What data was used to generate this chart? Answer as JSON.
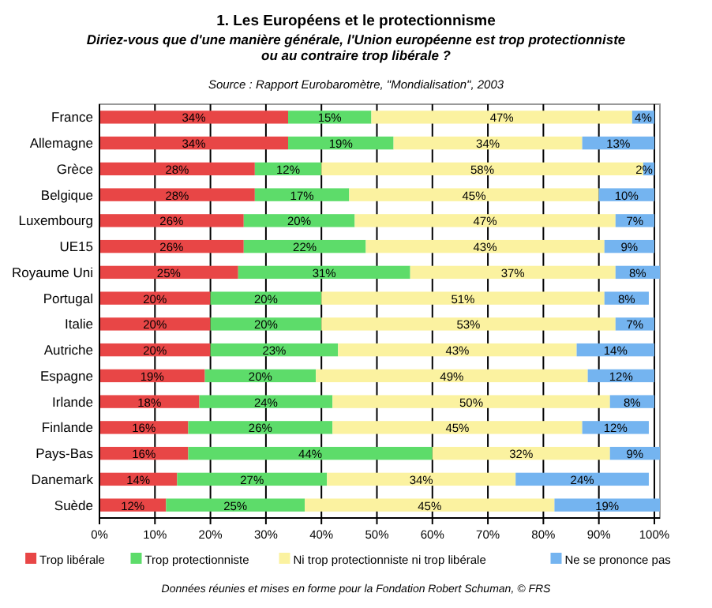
{
  "chart_data": {
    "type": "bar",
    "orientation": "horizontal",
    "stacked": true,
    "title": "1.  Les Européens et le protectionnisme",
    "subtitle": "Diriez-vous que d'une manière générale, l'Union européenne est trop protectionniste\nou au contraire trop libérale ?",
    "annotations": [
      "Source : Rapport Eurobaromètre, \"Mondialisation\", 2003",
      "Données réunies et mises en forme pour la Fondation Robert Schuman, © FRS"
    ],
    "categories": [
      "France",
      "Allemagne",
      "Grèce",
      "Belgique",
      "Luxembourg",
      "UE15",
      "Royaume Uni",
      "Portugal",
      "Italie",
      "Autriche",
      "Espagne",
      "Irlande",
      "Finlande",
      "Pays-Bas",
      "Danemark",
      "Suède"
    ],
    "series": [
      {
        "name": "Trop libérale",
        "color": "#e84646",
        "values": [
          34,
          34,
          28,
          28,
          26,
          26,
          25,
          20,
          20,
          20,
          19,
          18,
          16,
          16,
          14,
          12
        ],
        "value_labels": [
          "34%",
          "34%",
          "28%",
          "28%",
          "26%",
          "26%",
          "25%",
          "20%",
          "20%",
          "20%",
          "19%",
          "18%",
          "16%",
          "16%",
          "14%",
          "12%"
        ]
      },
      {
        "name": "Trop protectionniste",
        "color": "#5ddc6a",
        "values": [
          15,
          19,
          12,
          17,
          20,
          22,
          31,
          20,
          20,
          23,
          20,
          24,
          26,
          44,
          27,
          25
        ],
        "value_labels": [
          "15%",
          "19%",
          "12%",
          "17%",
          "20%",
          "22%",
          "31%",
          "20%",
          "20%",
          "23%",
          "20%",
          "24%",
          "26%",
          "44%",
          "27%",
          "25%"
        ]
      },
      {
        "name": "Ni trop protectionniste ni trop libérale",
        "color": "#fbf2a0",
        "values": [
          47,
          34,
          58,
          45,
          47,
          43,
          37,
          51,
          53,
          43,
          49,
          50,
          45,
          32,
          34,
          45
        ],
        "value_labels": [
          "47%",
          "34%",
          "58%",
          "45%",
          "47%",
          "43%",
          "37%",
          "51%",
          "53%",
          "43%",
          "49%",
          "50%",
          "45%",
          "32%",
          "34%",
          "45%"
        ]
      },
      {
        "name": "Ne se prononce pas",
        "color": "#74b4f0",
        "values": [
          4,
          13,
          2,
          10,
          7,
          9,
          8,
          8,
          7,
          14,
          12,
          8,
          12,
          9,
          24,
          19
        ],
        "value_labels": [
          "4%",
          "13%",
          "2%",
          "10%",
          "7%",
          "9%",
          "8%",
          "8%",
          "7%",
          "14%",
          "12%",
          "8%",
          "12%",
          "9%",
          "24%",
          "19%"
        ]
      }
    ],
    "xlim": [
      0,
      101
    ],
    "xticks": [
      {
        "value": 0,
        "label": "0%"
      },
      {
        "value": 10,
        "label": "10%"
      },
      {
        "value": 20,
        "label": "20%"
      },
      {
        "value": 30,
        "label": "30%"
      },
      {
        "value": 40,
        "label": "40%"
      },
      {
        "value": 50,
        "label": "50%"
      },
      {
        "value": 60,
        "label": "60%"
      },
      {
        "value": 70,
        "label": "70%"
      },
      {
        "value": 80,
        "label": "80%"
      },
      {
        "value": 90,
        "label": "90%"
      },
      {
        "value": 100,
        "label": "100%"
      }
    ],
    "grid": "x",
    "legend": "bottom"
  }
}
